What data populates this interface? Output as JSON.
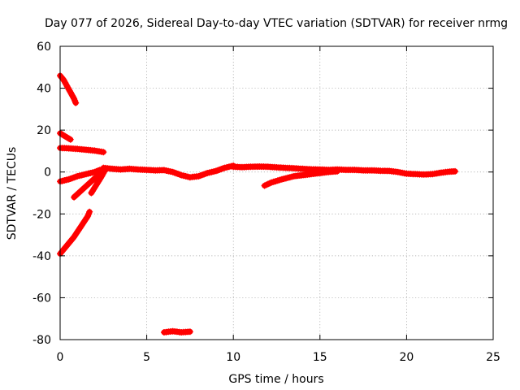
{
  "chart_data": {
    "type": "scatter",
    "title": "Day 077 of 2026, Sidereal Day-to-day VTEC variation (SDTVAR) for receiver nrmg",
    "xlabel": "GPS time / hours",
    "ylabel": "SDTVAR / TECUs",
    "xlim": [
      0,
      25
    ],
    "ylim": [
      -80,
      60
    ],
    "xticks": [
      0,
      5,
      10,
      15,
      20,
      25
    ],
    "yticks": [
      -80,
      -60,
      -40,
      -20,
      0,
      20,
      40,
      60
    ],
    "xtick_labels": [
      "0",
      "5",
      "10",
      "15",
      "20",
      "25"
    ],
    "ytick_labels": [
      "-80",
      "-60",
      "-40",
      "-20",
      "0",
      "20",
      "40",
      "60"
    ],
    "grid": true,
    "legend": "none",
    "marker": "plus",
    "color": "#ff0000",
    "series": [
      {
        "values": [
          [
            0.0,
            46
          ],
          [
            0.2,
            44
          ],
          [
            0.4,
            41
          ],
          [
            0.6,
            38
          ],
          [
            0.8,
            35
          ],
          [
            0.9,
            33
          ]
        ]
      },
      {
        "values": [
          [
            0.0,
            18.5
          ],
          [
            0.3,
            17
          ],
          [
            0.6,
            15.5
          ]
        ]
      },
      {
        "values": [
          [
            0.0,
            11.5
          ],
          [
            0.5,
            11.3
          ],
          [
            1.0,
            11
          ],
          [
            1.5,
            10.6
          ],
          [
            2.0,
            10.2
          ],
          [
            2.5,
            9.5
          ]
        ]
      },
      {
        "values": [
          [
            0.0,
            -4.5
          ],
          [
            0.5,
            -3.5
          ],
          [
            1.0,
            -2
          ],
          [
            1.5,
            -1
          ],
          [
            2.0,
            0
          ],
          [
            2.3,
            1
          ]
        ]
      },
      {
        "values": [
          [
            0.0,
            -39
          ],
          [
            0.4,
            -35
          ],
          [
            0.8,
            -31
          ],
          [
            1.2,
            -26
          ],
          [
            1.6,
            -21
          ],
          [
            1.7,
            -19
          ]
        ]
      },
      {
        "values": [
          [
            0.8,
            -12
          ],
          [
            1.2,
            -9
          ],
          [
            1.6,
            -6
          ],
          [
            2.0,
            -3
          ],
          [
            2.4,
            0
          ]
        ]
      },
      {
        "values": [
          [
            1.8,
            -10
          ],
          [
            2.1,
            -6
          ],
          [
            2.4,
            -2
          ],
          [
            2.6,
            1
          ]
        ]
      },
      {
        "values": [
          [
            2.5,
            2
          ],
          [
            3.0,
            1.5
          ],
          [
            3.5,
            1.2
          ],
          [
            4.0,
            1.5
          ],
          [
            4.5,
            1.2
          ],
          [
            5.0,
            1.0
          ],
          [
            5.5,
            0.8
          ],
          [
            6.0,
            0.9
          ],
          [
            6.5,
            0.0
          ],
          [
            7.0,
            -1.5
          ],
          [
            7.5,
            -2.5
          ],
          [
            8.0,
            -2.0
          ],
          [
            8.5,
            -0.5
          ],
          [
            9.0,
            0.5
          ],
          [
            9.5,
            2.0
          ],
          [
            10.0,
            3.0
          ]
        ]
      },
      {
        "values": [
          [
            6.0,
            -76.5
          ],
          [
            6.5,
            -76
          ],
          [
            7.0,
            -76.5
          ],
          [
            7.5,
            -76.2
          ]
        ]
      },
      {
        "values": [
          [
            10.0,
            2.5
          ],
          [
            10.5,
            2.3
          ],
          [
            11.0,
            2.5
          ],
          [
            11.5,
            2.6
          ],
          [
            12.0,
            2.5
          ],
          [
            12.5,
            2.2
          ],
          [
            13.0,
            2.0
          ],
          [
            13.5,
            1.8
          ],
          [
            14.0,
            1.5
          ],
          [
            14.5,
            1.3
          ],
          [
            15.0,
            1.2
          ],
          [
            15.5,
            1.0
          ],
          [
            16.0,
            1.2
          ],
          [
            16.5,
            1.0
          ],
          [
            17.0,
            1.0
          ],
          [
            17.5,
            0.8
          ],
          [
            18.0,
            0.8
          ],
          [
            18.5,
            0.6
          ],
          [
            19.0,
            0.5
          ],
          [
            19.5,
            0.0
          ],
          [
            20.0,
            -0.8
          ],
          [
            20.5,
            -1.0
          ],
          [
            21.0,
            -1.2
          ],
          [
            21.5,
            -1.0
          ],
          [
            22.0,
            -0.3
          ],
          [
            22.5,
            0.2
          ],
          [
            22.8,
            0.3
          ]
        ]
      },
      {
        "values": [
          [
            11.8,
            -6.5
          ],
          [
            12.2,
            -5
          ],
          [
            12.8,
            -3.5
          ],
          [
            13.5,
            -2
          ],
          [
            14.5,
            -1
          ],
          [
            15.5,
            0.0
          ],
          [
            16.0,
            0.3
          ]
        ]
      }
    ]
  }
}
